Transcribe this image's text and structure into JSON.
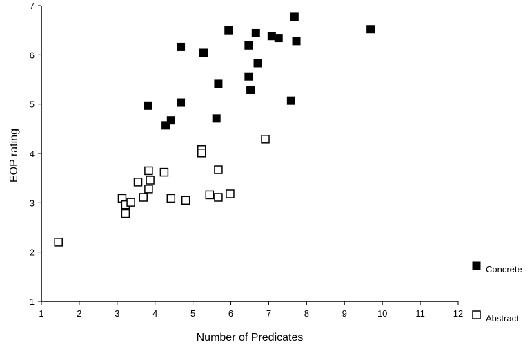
{
  "chart_data": {
    "type": "scatter",
    "title": "",
    "xlabel": "Number of Predicates",
    "ylabel": "EOP rating",
    "xlim": [
      1,
      12
    ],
    "ylim": [
      1,
      7
    ],
    "x_ticks": [
      "1",
      "2",
      "3",
      "4",
      "5",
      "6",
      "7",
      "8",
      "9",
      "10",
      "11",
      "12"
    ],
    "y_ticks": [
      "1",
      "2",
      "3",
      "4",
      "5",
      "6",
      "7"
    ],
    "grid": false,
    "legend_position": "bottom-right",
    "series": [
      {
        "name": "Concrete",
        "marker": "filled-square",
        "color": "#000000",
        "points": [
          [
            3.82,
            4.97
          ],
          [
            4.28,
            4.57
          ],
          [
            4.42,
            4.67
          ],
          [
            4.68,
            5.03
          ],
          [
            4.68,
            6.16
          ],
          [
            5.28,
            6.04
          ],
          [
            5.62,
            4.71
          ],
          [
            5.67,
            5.41
          ],
          [
            5.94,
            6.5
          ],
          [
            6.47,
            6.19
          ],
          [
            6.47,
            5.56
          ],
          [
            6.52,
            5.29
          ],
          [
            6.66,
            6.44
          ],
          [
            6.71,
            5.83
          ],
          [
            7.08,
            6.38
          ],
          [
            7.26,
            6.34
          ],
          [
            7.59,
            5.07
          ],
          [
            7.68,
            6.77
          ],
          [
            7.73,
            6.28
          ],
          [
            9.69,
            6.52
          ]
        ]
      },
      {
        "name": "Abstract",
        "marker": "open-square",
        "color": "#000000",
        "points": [
          [
            1.45,
            2.2
          ],
          [
            3.13,
            3.09
          ],
          [
            3.22,
            2.96
          ],
          [
            3.22,
            2.78
          ],
          [
            3.36,
            3.01
          ],
          [
            3.55,
            3.42
          ],
          [
            3.69,
            3.11
          ],
          [
            3.83,
            3.65
          ],
          [
            3.83,
            3.28
          ],
          [
            3.87,
            3.46
          ],
          [
            4.24,
            3.62
          ],
          [
            4.42,
            3.09
          ],
          [
            4.81,
            3.05
          ],
          [
            5.23,
            4.08
          ],
          [
            5.23,
            4.01
          ],
          [
            5.44,
            3.16
          ],
          [
            5.67,
            3.67
          ],
          [
            5.67,
            3.11
          ],
          [
            5.98,
            3.18
          ],
          [
            6.91,
            4.29
          ]
        ]
      }
    ]
  }
}
